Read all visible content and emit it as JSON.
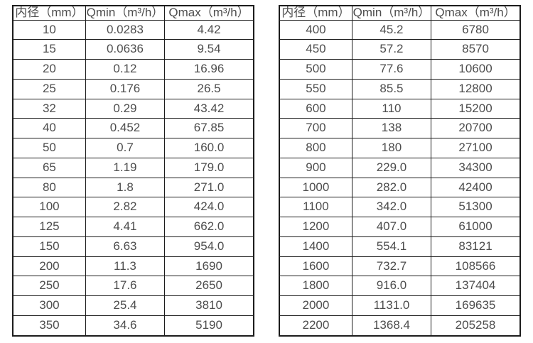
{
  "colors": {
    "background": "#ffffff",
    "border": "#1c1c1c",
    "text": "#4d4d4d"
  },
  "tables": [
    {
      "name": "small-diameter-flow-range",
      "headers": [
        "内径（mm）",
        "Qmin（m³/h）",
        "Qmax（m³/h）"
      ],
      "rows": [
        [
          "10",
          "0.0283",
          "4.42"
        ],
        [
          "15",
          "0.0636",
          "9.54"
        ],
        [
          "20",
          "0.12",
          "16.96"
        ],
        [
          "25",
          "0.176",
          "26.5"
        ],
        [
          "32",
          "0.29",
          "43.42"
        ],
        [
          "40",
          "0.452",
          "67.85"
        ],
        [
          "50",
          "0.7",
          "160.0"
        ],
        [
          "65",
          "1.19",
          "179.0"
        ],
        [
          "80",
          "1.8",
          "271.0"
        ],
        [
          "100",
          "2.82",
          "424.0"
        ],
        [
          "125",
          "4.41",
          "662.0"
        ],
        [
          "150",
          "6.63",
          "954.0"
        ],
        [
          "200",
          "11.3",
          "1690"
        ],
        [
          "250",
          "17.6",
          "2650"
        ],
        [
          "300",
          "25.4",
          "3810"
        ],
        [
          "350",
          "34.6",
          "5190"
        ]
      ]
    },
    {
      "name": "large-diameter-flow-range",
      "headers": [
        "内径（mm）",
        "Qmin（m³/h）",
        "Qmax（m³/h）"
      ],
      "rows": [
        [
          "400",
          "45.2",
          "6780"
        ],
        [
          "450",
          "57.2",
          "8570"
        ],
        [
          "500",
          "77.6",
          "10600"
        ],
        [
          "550",
          "85.5",
          "12800"
        ],
        [
          "600",
          "110",
          "15200"
        ],
        [
          "700",
          "138",
          "20700"
        ],
        [
          "800",
          "180",
          "27100"
        ],
        [
          "900",
          "229.0",
          "34300"
        ],
        [
          "1000",
          "282.0",
          "42400"
        ],
        [
          "1100",
          "342.0",
          "51300"
        ],
        [
          "1200",
          "407.0",
          "61000"
        ],
        [
          "1400",
          "554.1",
          "83121"
        ],
        [
          "1600",
          "732.7",
          "108566"
        ],
        [
          "1800",
          "916.0",
          "137404"
        ],
        [
          "2000",
          "1131.0",
          "169635"
        ],
        [
          "2200",
          "1368.4",
          "205258"
        ]
      ]
    }
  ]
}
